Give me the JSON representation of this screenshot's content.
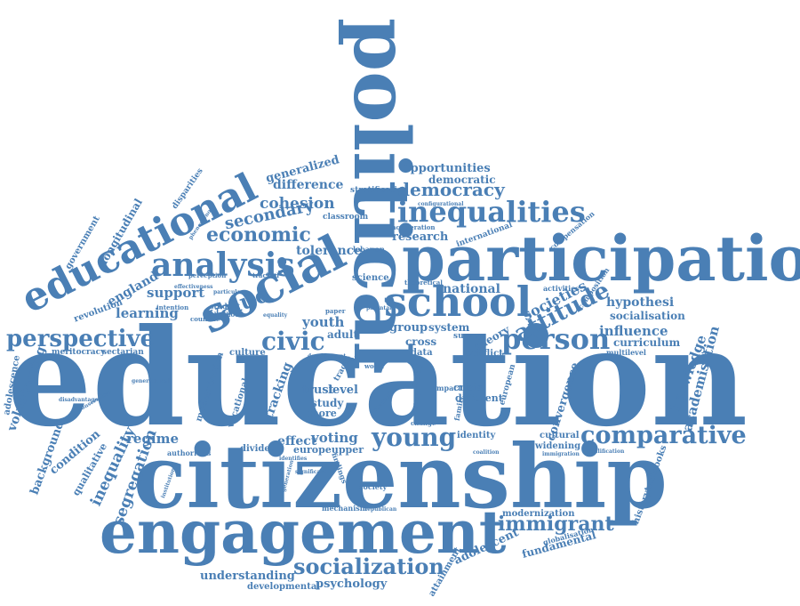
{
  "theme": {
    "word_color": "#4a7fb5",
    "background": "#ffffff"
  },
  "words": {
    "education": "education",
    "citizenship": "citizenship",
    "engagement": "engagement",
    "participation": "participation",
    "political": "political",
    "social": "social",
    "school": "school",
    "educational": "educational",
    "analysis": "analysis",
    "inequalities": "inequalities",
    "person": "person",
    "attitude": "attitude",
    "perspective": "perspective",
    "young": "young",
    "comparative": "comparative",
    "socialization": "socialization",
    "immigrant": "immigrant",
    "democracy": "democracy",
    "economic": "economic",
    "value": "value",
    "civic": "civic",
    "secondary": "secondary",
    "cohesion": "cohesion",
    "difference": "difference",
    "generalized": "generalized",
    "opportunities": "opportunities",
    "democratic": "democratic",
    "research": "research",
    "tolerance": "tolerance",
    "youth": "youth",
    "national": "national",
    "societies": "societies",
    "influence": "influence",
    "hypothesi": "hypothesi",
    "socialisation": "socialisation",
    "curriculum": "curriculum",
    "knowledge": "knowledge",
    "academisation": "academisation",
    "convergence": "convergence",
    "learning": "learning",
    "support": "support",
    "england": "england",
    "longitudinal": "longitudinal",
    "government": "government",
    "revolution": "revolution",
    "volunteering": "volunteering",
    "adolescence": "adolescence",
    "background": "background",
    "condition": "condition",
    "qualitative": "qualitative",
    "inequality": "inequality",
    "segregation": "segregation",
    "regime": "regime",
    "tracking": "tracking",
    "voting": "voting",
    "effect": "effect",
    "europeupper": "europeupper",
    "understanding": "understanding",
    "developmental": "developmental",
    "psychology": "psychology",
    "adolescent": "adolescent",
    "fundamental": "fundamental",
    "modernization": "modernization",
    "globalisation": "globalisation",
    "historytextbooks": "historytextbooks",
    "attainment": "attainment",
    "system": "system",
    "group": "group",
    "adult": "adult",
    "cross": "cross",
    "data": "data",
    "conflict": "conflict",
    "survey": "survey",
    "theory": "theory",
    "crisis": "crisis",
    "different": "different",
    "identity": "identity",
    "widening": "widening",
    "cultural": "cultural",
    "study": "study",
    "trust": "trust",
    "level": "level",
    "more": "more",
    "culture": "culture",
    "modernisation": "modernisation",
    "vocational": "vocational",
    "divided": "divided",
    "authorities": "authorities",
    "science": "science",
    "classroom": "classroom",
    "stratification": "stratification",
    "international": "international",
    "compensation": "compensation",
    "lebanon": "lebanon",
    "acceleration": "acceleration",
    "disparities": "disparities",
    "perception": "perception",
    "intention": "intention",
    "countrie": "countrie",
    "student": "student",
    "adulthood": "adulthood",
    "meritocracy": "meritocracy",
    "sectarian": "sectarian",
    "multilevel": "multilevel",
    "activities": "activities",
    "composition": "composition",
    "theoretical": "theoretical",
    "paper": "paper",
    "article": "article",
    "society": "society",
    "mechanism": "mechanism",
    "republican": "republican",
    "european": "european",
    "trend": "trend",
    "impact": "impact",
    "family": "family",
    "change": "change",
    "track": "track",
    "world": "world",
    "council": "council",
    "history": "history",
    "climate": "climate",
    "tracked": "tracked",
    "development": "development",
    "significant": "significant",
    "identifies": "identifies",
    "coalition": "coalition",
    "disadvantaged": "disadvantaged",
    "conservative": "conservative",
    "effectiveness": "effectiveness",
    "particular": "particular",
    "institution": "institution",
    "qualification": "qualification",
    "immigration": "immigration",
    "configurational": "configurational",
    "phenomenon": "phenomenon",
    "generational": "generational",
    "equality": "equality",
    "parental": "parental",
    "findings": "findings",
    "generation": "generation"
  }
}
